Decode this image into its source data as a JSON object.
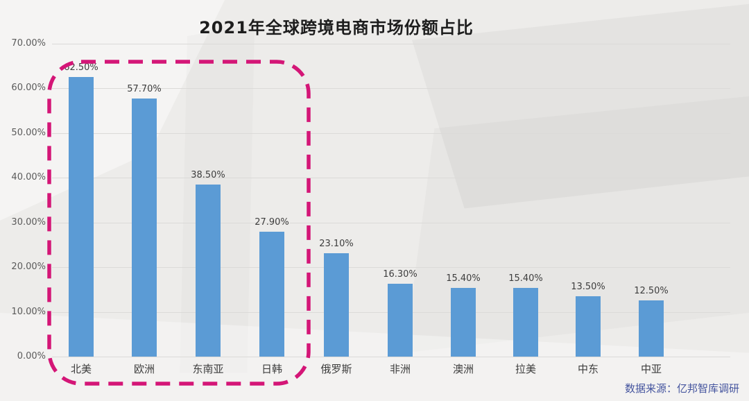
{
  "chart_data": {
    "type": "bar",
    "title": "2021年全球跨境电商市场份额占比",
    "categories": [
      "北美",
      "欧洲",
      "东南亚",
      "日韩",
      "俄罗斯",
      "非洲",
      "澳洲",
      "拉美",
      "中东",
      "中亚"
    ],
    "values": [
      62.5,
      57.7,
      38.5,
      27.9,
      23.1,
      16.3,
      15.4,
      15.4,
      13.5,
      12.5
    ],
    "value_labels": [
      "62.50%",
      "57.70%",
      "38.50%",
      "27.90%",
      "23.10%",
      "16.30%",
      "15.40%",
      "15.40%",
      "13.50%",
      "12.50%"
    ],
    "xlabel": "",
    "ylabel": "",
    "ylim": [
      0,
      70
    ],
    "ytick_labels": [
      "0.00%",
      "10.00%",
      "20.00%",
      "30.00%",
      "40.00%",
      "50.00%",
      "60.00%",
      "70.00%"
    ],
    "grid": true,
    "legend": false,
    "bar_color": "#5B9BD5",
    "highlighted_categories": [
      "北美",
      "欧洲",
      "东南亚",
      "日韩"
    ],
    "highlight_box_color": "#D41677"
  },
  "source_note": {
    "text": "数据来源：亿邦智库调研",
    "color": "#44549E"
  }
}
